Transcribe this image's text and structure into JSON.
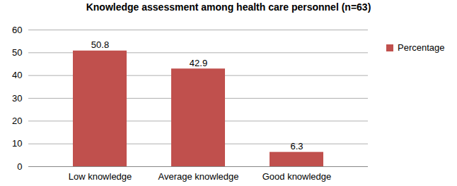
{
  "chart_data": {
    "type": "bar",
    "title": "Knowledge assessment among health care personnel (n=63)",
    "categories": [
      "Low knowledge",
      "Average knowledge",
      "Good knowledge"
    ],
    "series": [
      {
        "name": "Percentage",
        "color": "#c0504d",
        "values": [
          50.8,
          42.9,
          6.3
        ]
      }
    ],
    "ylim": [
      0,
      60
    ],
    "yticks": [
      0,
      10,
      20,
      30,
      40,
      50,
      60
    ],
    "grid": true,
    "legend": "right",
    "data_labels": true
  }
}
